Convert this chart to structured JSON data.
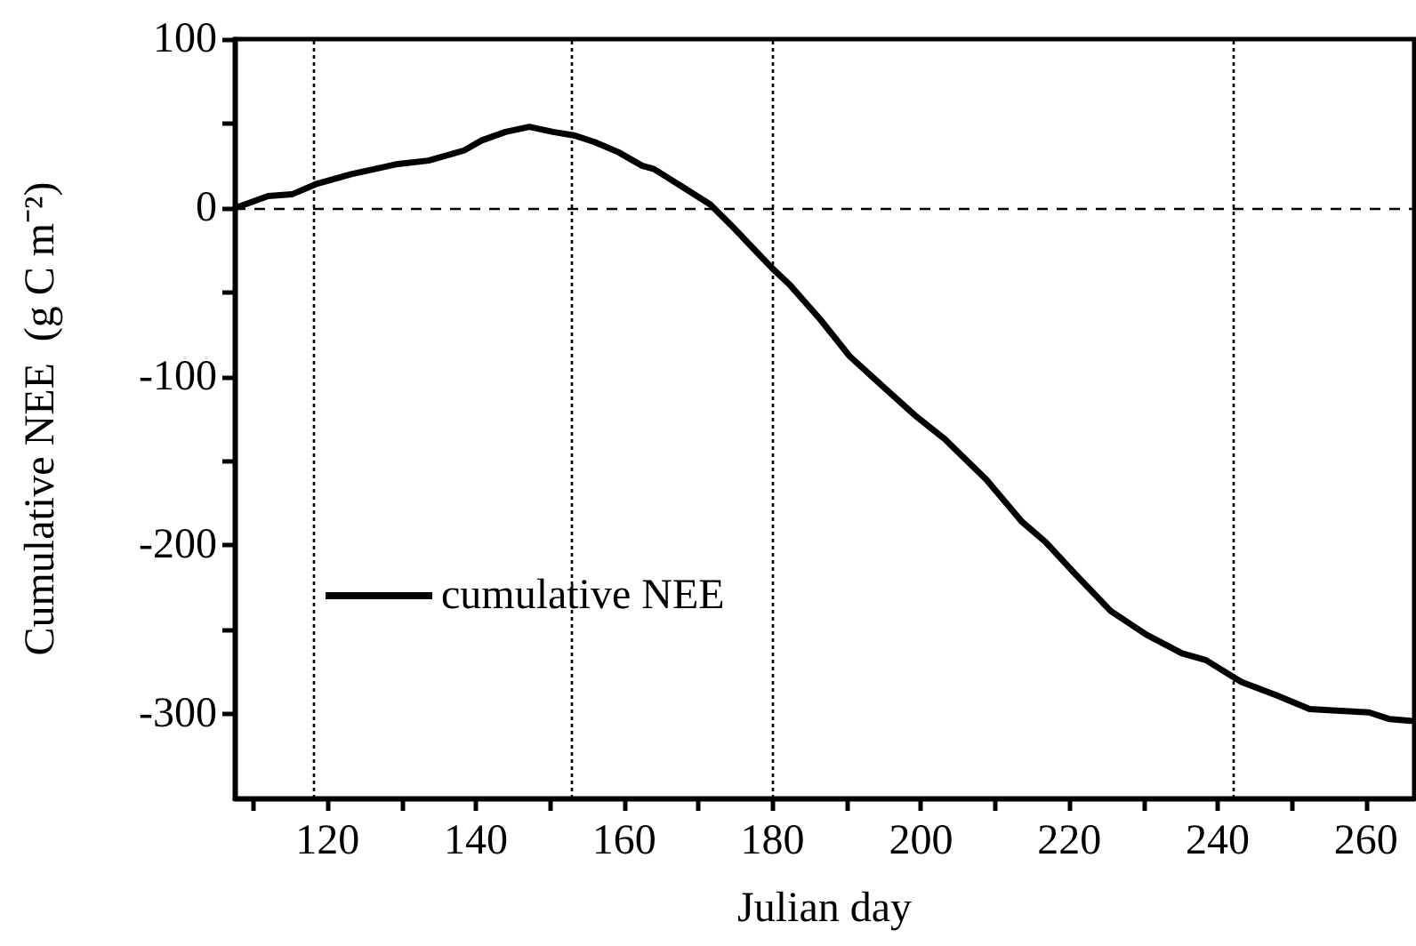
{
  "chart_data": {
    "type": "line",
    "xlabel": "Julian day",
    "ylabel": "Cumulative NEE  (g C m⁻²)",
    "series": [
      {
        "name": "cumulative NEE",
        "color": "#000000",
        "x": [
          107.6,
          112,
          115.2,
          118.4,
          123.2,
          129.5,
          133.6,
          138.4,
          140.8,
          144,
          147.2,
          150.4,
          153.2,
          156,
          159.2,
          162.4,
          164,
          168,
          171.6,
          174.8,
          177.6,
          180,
          182.4,
          186.4,
          190.4,
          194.4,
          199.2,
          203.2,
          208.8,
          213.6,
          216.8,
          220.8,
          225.6,
          230.4,
          235.2,
          238.4,
          243.2,
          248,
          252.4,
          256,
          260.4,
          263.2,
          266
        ],
        "values": [
          0,
          7,
          8,
          14,
          20,
          26,
          28,
          34,
          40,
          45,
          48,
          45,
          43,
          39,
          33,
          25,
          23,
          12,
          2,
          -12,
          -25,
          -36,
          -46,
          -66,
          -88,
          -104,
          -123,
          -137,
          -161,
          -186,
          -198,
          -217,
          -239,
          -253,
          -264,
          -268,
          -281,
          -289,
          -297,
          -298,
          -299,
          -303,
          -304
        ]
      }
    ],
    "xlim": [
      107.5,
      266.5
    ],
    "xticks": [
      {
        "value": 110,
        "label": null
      },
      120,
      {
        "value": 130,
        "label": null
      },
      140,
      {
        "value": 150,
        "label": null
      },
      160,
      {
        "value": 170,
        "label": null
      },
      180,
      {
        "value": 190,
        "label": null
      },
      200,
      {
        "value": 210,
        "label": null
      },
      220,
      {
        "value": 230,
        "label": null
      },
      240,
      {
        "value": 250,
        "label": null
      },
      260
    ],
    "ylim": [
      -350,
      100
    ],
    "yticks": [
      -300,
      {
        "value": -250,
        "label": null
      },
      -200,
      {
        "value": -150,
        "label": null
      },
      -100,
      {
        "value": -50,
        "label": null
      },
      0,
      {
        "value": 50,
        "label": null
      },
      100
    ],
    "ref_lines": [
      {
        "axis": "x",
        "value": 118,
        "color": "#000000",
        "line_style": "dotted"
      },
      {
        "axis": "x",
        "value": 153,
        "color": "#000000",
        "line_style": "dotted"
      },
      {
        "axis": "x",
        "value": 180,
        "color": "#000000",
        "line_style": "dotted"
      },
      {
        "axis": "x",
        "value": 242,
        "color": "#000000",
        "line_style": "dotted"
      },
      {
        "axis": "y",
        "value": 0,
        "color": "#000000",
        "line_style": "dashed"
      }
    ],
    "legend": "left",
    "grid": false,
    "marker": "none",
    "line_style": "solid"
  }
}
